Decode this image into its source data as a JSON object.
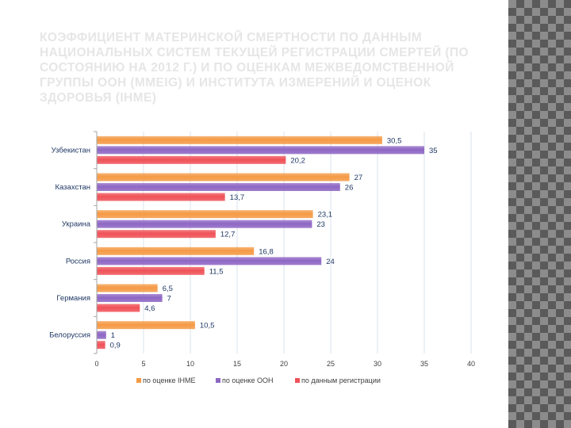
{
  "slide": {
    "title": "Коэффициент материнской смертности по данным национальных систем текущей регистрации смертей (по состоянию на 2012 г.) и по оценкам межведомственной группы ООН (MMEIG) и Института измерений и оценок здоровья (IHME)"
  },
  "colors": {
    "title": "#e6e6e6",
    "grid": "#d9e3ec",
    "axis": "#a6a6a6"
  },
  "chart_data": {
    "type": "bar",
    "orientation": "horizontal",
    "title": "",
    "categories": [
      "Узбекистан",
      "Казахстан",
      "Украина",
      "Россия",
      "Германия",
      "Белоруссия"
    ],
    "series": [
      {
        "name": "по оценке IHME",
        "color": "#f59a46",
        "values": [
          30.5,
          27,
          23.1,
          16.8,
          6.5,
          10.5
        ],
        "labels": [
          "30,5",
          "27",
          "23,1",
          "16,8",
          "6,5",
          "10,5"
        ]
      },
      {
        "name": "по оценке ООН",
        "color": "#8e66c4",
        "values": [
          35,
          26,
          23,
          24,
          7,
          1
        ],
        "labels": [
          "35",
          "26",
          "23",
          "24",
          "7",
          "1"
        ]
      },
      {
        "name": "по данным регистрации",
        "color": "#ef5258",
        "values": [
          20.2,
          13.7,
          12.7,
          11.5,
          4.6,
          0.9
        ],
        "labels": [
          "20,2",
          "13,7",
          "12,7",
          "11,5",
          "4,6",
          "0,9"
        ]
      }
    ],
    "xlim": [
      0,
      40
    ],
    "xticks": [
      0,
      5,
      10,
      15,
      20,
      25,
      30,
      35,
      40
    ],
    "xlabel": "",
    "ylabel": "",
    "grid": true,
    "legend": "bottom"
  }
}
